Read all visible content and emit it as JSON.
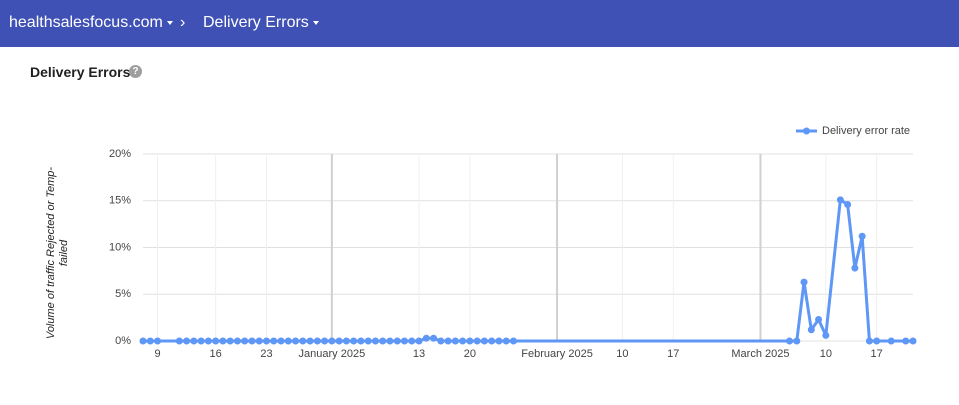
{
  "header": {
    "domain": "healthsalesfocus.com",
    "separator": "›",
    "page": "Delivery Errors"
  },
  "section_title": "Delivery Errors",
  "chart_data": {
    "type": "line",
    "y_label": "Volume of traffic Rejected or Temp-failed",
    "x": [
      -26,
      -25,
      -24,
      -21,
      -20,
      -19,
      -18,
      -17,
      -16,
      -15,
      -14,
      -13,
      -12,
      -11,
      -10,
      -9,
      -8,
      -7,
      -6,
      -5,
      -4,
      -3,
      -2,
      -1,
      0,
      1,
      2,
      3,
      4,
      5,
      6,
      7,
      8,
      9,
      10,
      11,
      12,
      13,
      14,
      15,
      16,
      17,
      18,
      19,
      20,
      21,
      22,
      23,
      24,
      25,
      63,
      64,
      65,
      66,
      67,
      68,
      70,
      71,
      72,
      73,
      74,
      75,
      77,
      79,
      80
    ],
    "series": [
      {
        "name": "Delivery error rate",
        "color": "#5e97f6",
        "values": [
          0,
          0,
          0,
          0,
          0,
          0,
          0,
          0,
          0,
          0,
          0,
          0,
          0,
          0,
          0,
          0,
          0,
          0,
          0,
          0,
          0,
          0,
          0,
          0,
          0,
          0,
          0,
          0,
          0,
          0,
          0,
          0,
          0,
          0,
          0,
          0,
          0,
          0.3,
          0.3,
          0,
          0,
          0,
          0,
          0,
          0,
          0,
          0,
          0,
          0,
          0,
          0,
          0,
          6.3,
          1.2,
          2.3,
          0.6,
          15.1,
          14.6,
          7.8,
          11.2,
          0,
          0,
          0,
          0,
          0
        ]
      }
    ],
    "xlim": [
      -26,
      80
    ],
    "xticks": [
      {
        "value": -24,
        "label": "9"
      },
      {
        "value": -16,
        "label": "16"
      },
      {
        "value": -9,
        "label": "23"
      },
      {
        "value": 0,
        "label": "January 2025"
      },
      {
        "value": 12,
        "label": "13"
      },
      {
        "value": 19,
        "label": "20"
      },
      {
        "value": 31,
        "label": "February 2025"
      },
      {
        "value": 40,
        "label": "10"
      },
      {
        "value": 47,
        "label": "17"
      },
      {
        "value": 59,
        "label": "March 2025"
      },
      {
        "value": 68,
        "label": "10"
      },
      {
        "value": 75,
        "label": "17"
      }
    ],
    "ylim": [
      0,
      20
    ],
    "yticks": [
      {
        "value": 0,
        "label": "0%"
      },
      {
        "value": 5,
        "label": "5%"
      },
      {
        "value": 10,
        "label": "10%"
      },
      {
        "value": 15,
        "label": "15%"
      },
      {
        "value": 20,
        "label": "20%"
      }
    ],
    "grid": true,
    "legend": "top-right"
  }
}
